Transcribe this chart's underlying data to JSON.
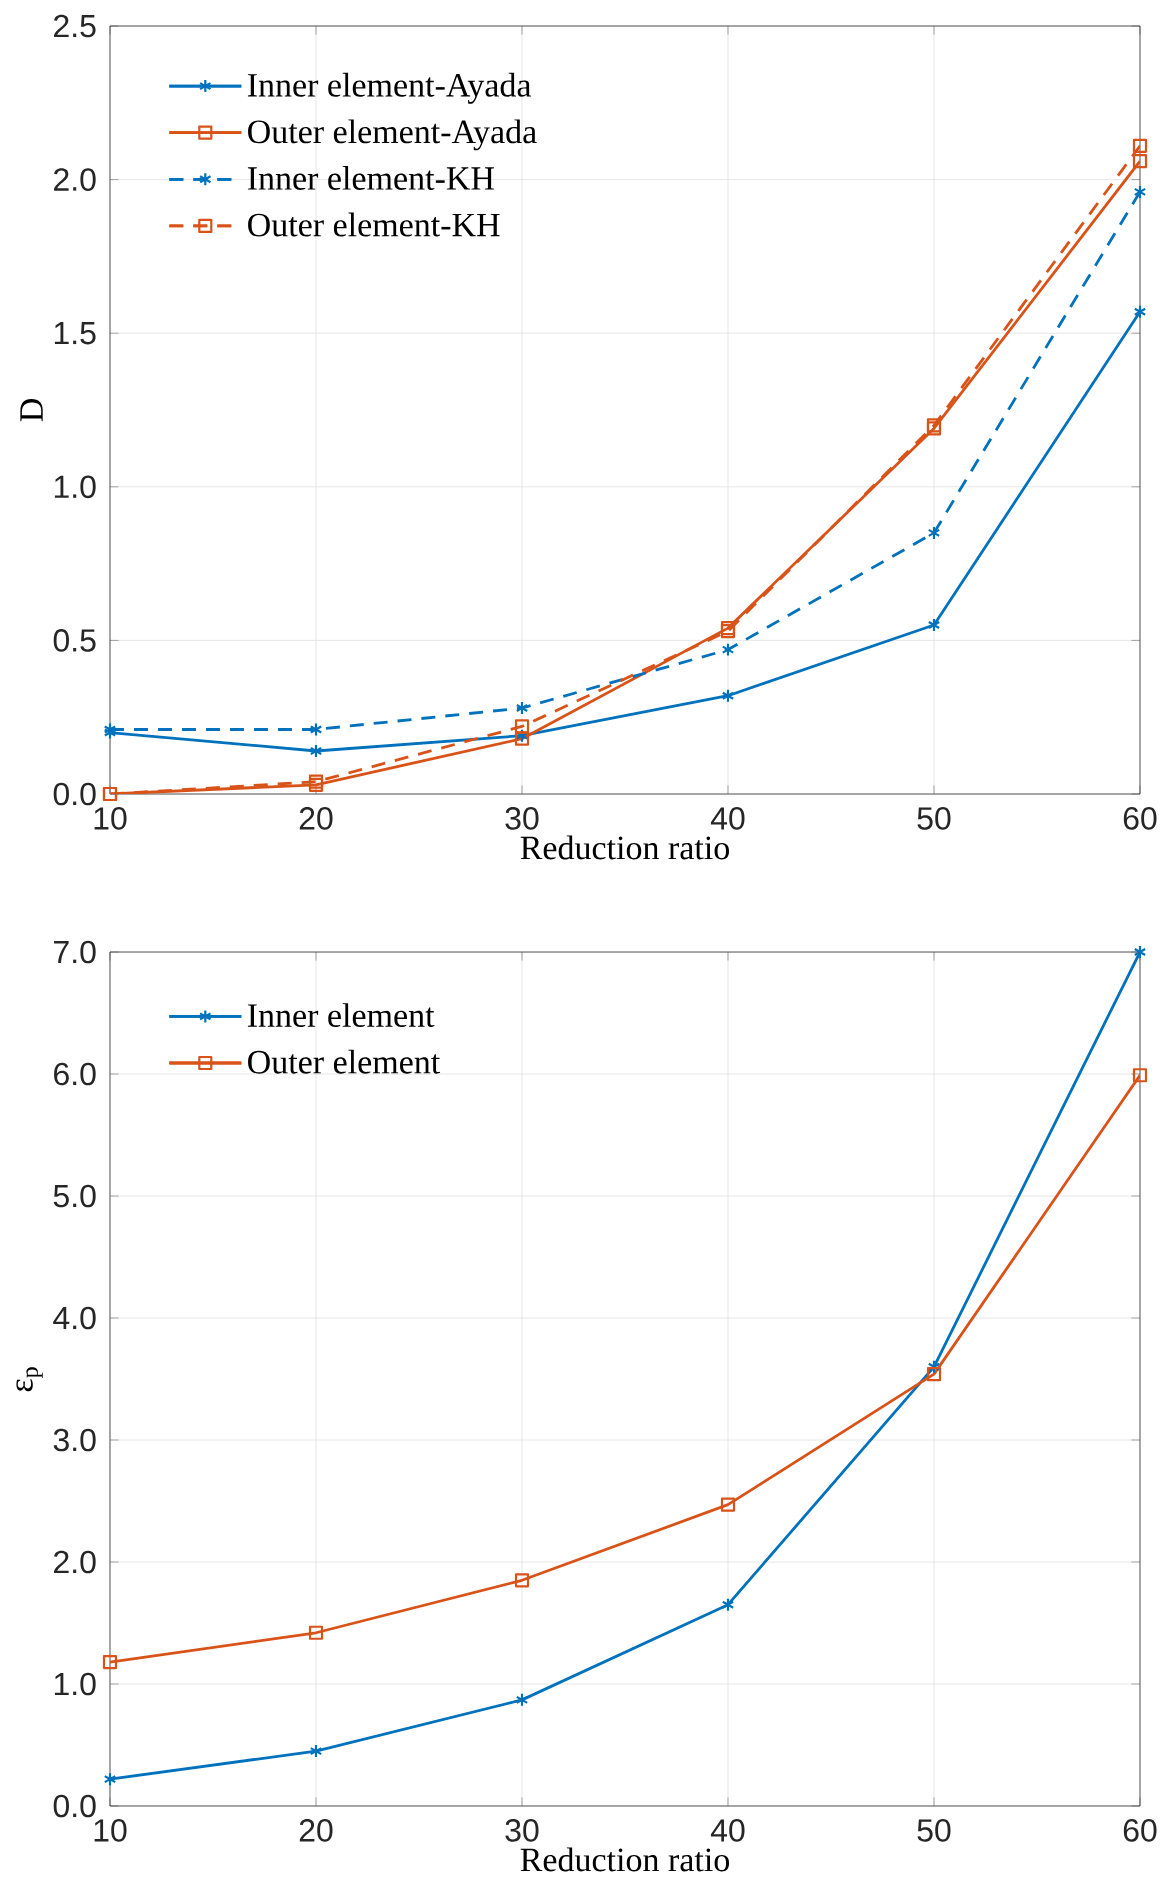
{
  "chart_data": [
    {
      "type": "line",
      "xlabel": "Reduction ratio",
      "ylabel": "D",
      "x": [
        10,
        20,
        30,
        40,
        50,
        60
      ],
      "xlim": [
        10,
        60
      ],
      "ylim": [
        0,
        2.5
      ],
      "xticks": [
        10,
        20,
        30,
        40,
        50,
        60
      ],
      "yticks": [
        {
          "value": 0,
          "label": "0.0"
        },
        {
          "value": 0.5,
          "label": "0.5"
        },
        {
          "value": 1,
          "label": "1.0"
        },
        {
          "value": 1.5,
          "label": "1.5"
        },
        {
          "value": 2,
          "label": "2.0"
        },
        {
          "value": 2.5,
          "label": "2.5"
        }
      ],
      "grid": true,
      "legend": "top left",
      "series": [
        {
          "name": "Inner element-Ayada",
          "color": "#0072bd",
          "marker": "cross",
          "line_style": "solid",
          "values": [
            0.2,
            0.14,
            0.19,
            0.32,
            0.55,
            1.57
          ]
        },
        {
          "name": "Outer element-Ayada",
          "color": "#d95319",
          "marker": "square",
          "line_style": "solid",
          "values": [
            0.0,
            0.03,
            0.18,
            0.54,
            1.19,
            2.06
          ]
        },
        {
          "name": "Inner element-KH",
          "color": "#0072bd",
          "marker": "cross",
          "line_style": "dashed",
          "values": [
            0.21,
            0.21,
            0.28,
            0.47,
            0.85,
            1.96
          ]
        },
        {
          "name": "Outer element-KH",
          "color": "#d95319",
          "marker": "square",
          "line_style": "dashed",
          "values": [
            0.0,
            0.04,
            0.22,
            0.53,
            1.2,
            2.11
          ]
        }
      ]
    },
    {
      "type": "line",
      "xlabel": "Reduction ratio",
      "ylabel": "ε$_{p}$",
      "x": [
        10,
        20,
        30,
        40,
        50,
        60
      ],
      "xlim": [
        10,
        60
      ],
      "ylim": [
        0,
        7
      ],
      "xticks": [
        10,
        20,
        30,
        40,
        50,
        60
      ],
      "yticks": [
        {
          "value": 0,
          "label": "0.0"
        },
        {
          "value": 1,
          "label": "1.0"
        },
        {
          "value": 2,
          "label": "2.0"
        },
        {
          "value": 3,
          "label": "3.0"
        },
        {
          "value": 4,
          "label": "4.0"
        },
        {
          "value": 5,
          "label": "5.0"
        },
        {
          "value": 6,
          "label": "6.0"
        },
        {
          "value": 7,
          "label": "7.0"
        }
      ],
      "grid": true,
      "legend": "top left",
      "series": [
        {
          "name": "Inner element",
          "color": "#0072bd",
          "marker": "cross",
          "line_style": "solid",
          "values": [
            0.22,
            0.45,
            0.87,
            1.65,
            3.6,
            7.0
          ]
        },
        {
          "name": "Outer element",
          "color": "#d95319",
          "marker": "square",
          "line_style": "solid",
          "values": [
            1.18,
            1.42,
            1.85,
            2.47,
            3.54,
            5.99
          ]
        }
      ]
    }
  ]
}
